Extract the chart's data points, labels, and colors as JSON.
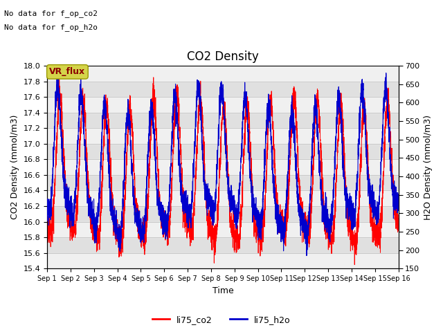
{
  "title": "CO2 Density",
  "xlabel": "Time",
  "ylabel_left": "CO2 Density (mmol/m3)",
  "ylabel_right": "H2O Density (mmol/m3)",
  "ylim_left": [
    15.4,
    18.0
  ],
  "ylim_right": [
    150,
    700
  ],
  "yticks_left": [
    15.4,
    15.6,
    15.8,
    16.0,
    16.2,
    16.4,
    16.6,
    16.8,
    17.0,
    17.2,
    17.4,
    17.6,
    17.8,
    18.0
  ],
  "yticks_right": [
    150,
    200,
    250,
    300,
    350,
    400,
    450,
    500,
    550,
    600,
    650,
    700
  ],
  "xtick_labels": [
    "Sep 1",
    "Sep 2",
    "Sep 3",
    "Sep 4",
    "Sep 5",
    "Sep 6",
    "Sep 7",
    "Sep 8",
    "Sep 9",
    "Sep 10",
    "Sep 11",
    "Sep 12",
    "Sep 13",
    "Sep 14",
    "Sep 15",
    "Sep 16"
  ],
  "no_data_text1": "No data for f_op_co2",
  "no_data_text2": "No data for f_op_h2o",
  "vr_flux_label": "VR_flux",
  "line_co2_color": "#FF0000",
  "line_h2o_color": "#0000CC",
  "legend_labels": [
    "li75_co2",
    "li75_h2o"
  ],
  "background_color": "#FFFFFF",
  "plot_bg_color": "#E0E0E0",
  "band_color_light": "#EBEBEB",
  "vr_flux_bg": "#D4D44A",
  "vr_flux_text_color": "#8B0000"
}
